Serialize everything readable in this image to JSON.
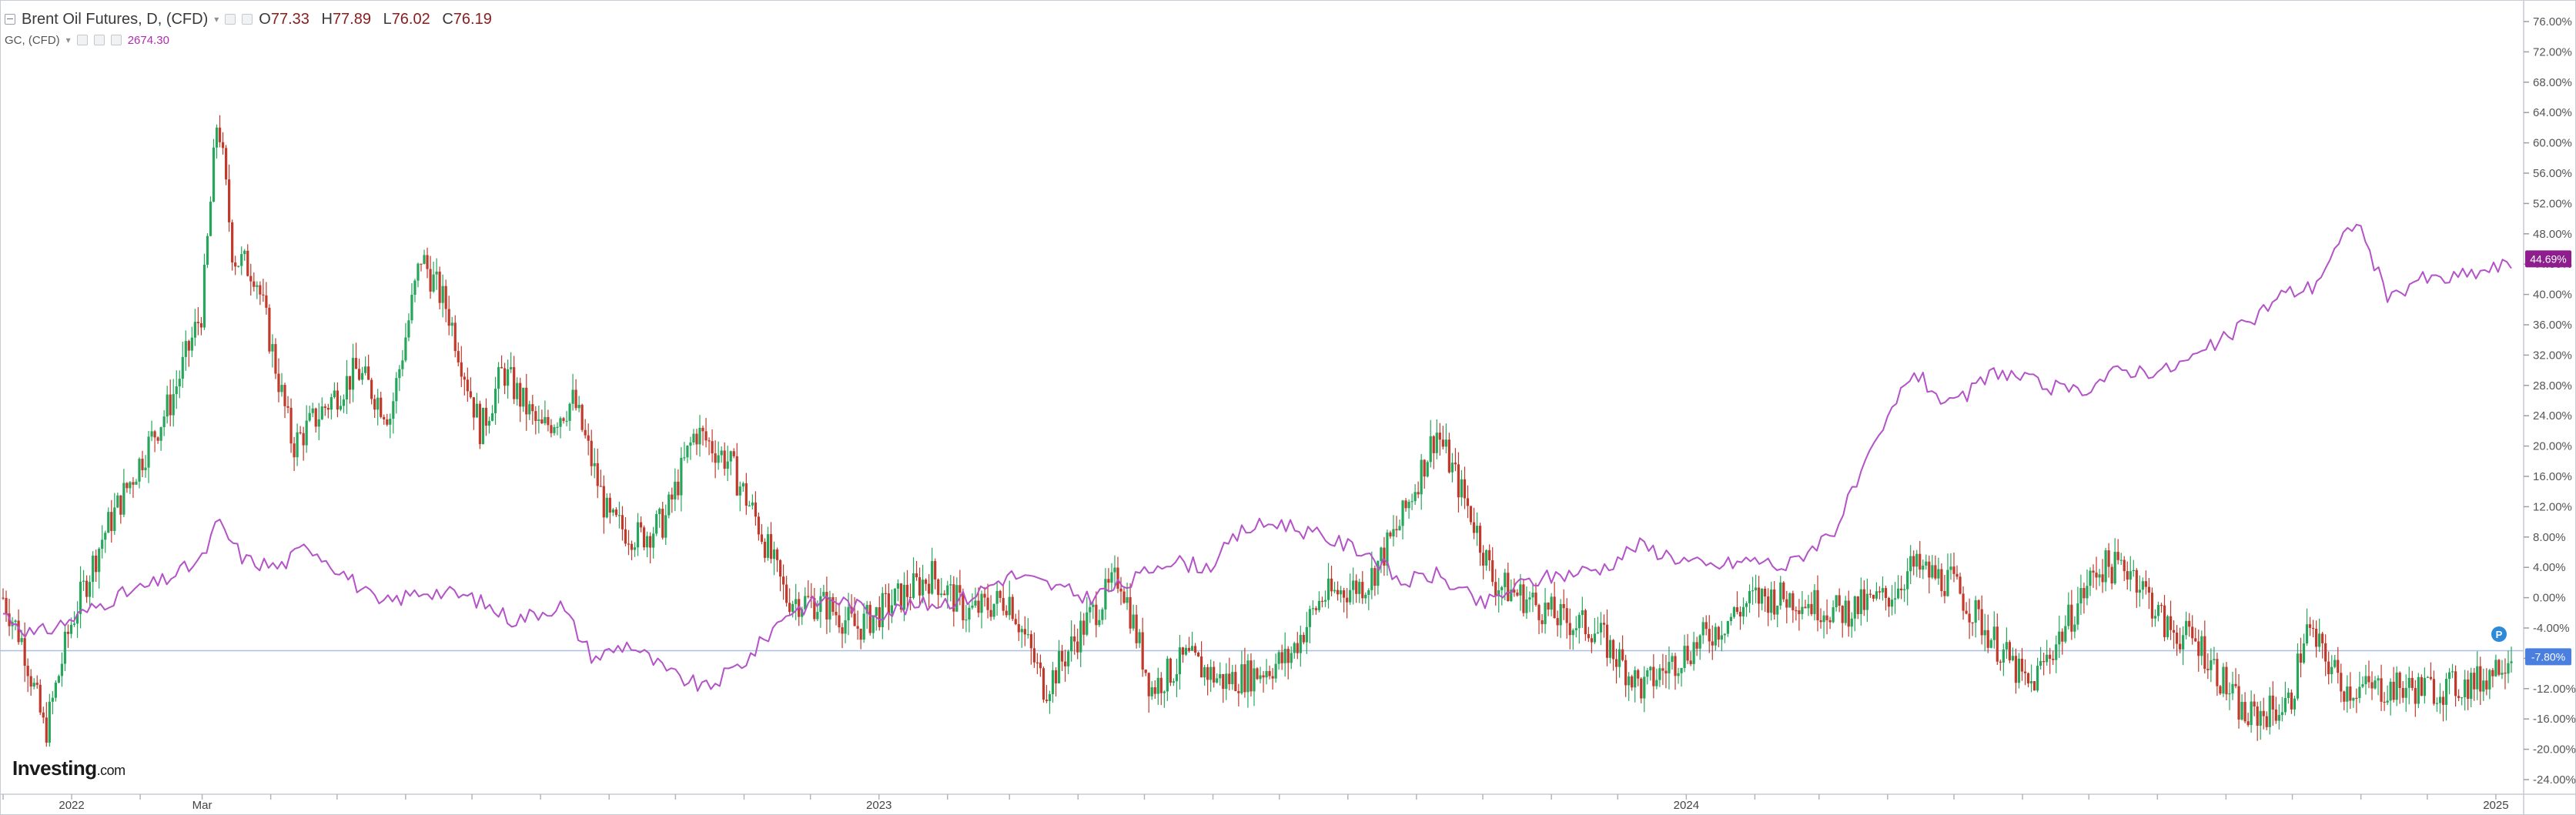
{
  "legend": {
    "symbol": "Brent Oil Futures, D, (CFD)",
    "open_label": "O",
    "open": "77.33",
    "high_label": "H",
    "high": "77.89",
    "low_label": "L",
    "low": "76.02",
    "close_label": "C",
    "close": "76.19",
    "compare_symbol": "GC, (CFD)",
    "compare_value": "2674.30"
  },
  "logo": {
    "brand": "Investing",
    "suffix": ".com"
  },
  "colors": {
    "up": "#26a65b",
    "down": "#c0392b",
    "compare_line": "#b452c7",
    "compare_badge": "#8e1e8e",
    "main_badge": "#4a7fe0",
    "price_line": "#a9bfe6"
  },
  "chart_data": {
    "type": "line",
    "title": "Brent Oil Futures, D, (CFD)",
    "y_axis": {
      "unit": "% change",
      "ylim": [
        -25,
        77
      ],
      "ticks": [
        "76.00%",
        "72.00%",
        "68.00%",
        "64.00%",
        "60.00%",
        "56.00%",
        "52.00%",
        "48.00%",
        "44.00%",
        "40.00%",
        "36.00%",
        "32.00%",
        "28.00%",
        "24.00%",
        "20.00%",
        "16.00%",
        "12.00%",
        "8.00%",
        "4.00%",
        "0.00%",
        "-4.00%",
        "-8.00%",
        "-12.00%",
        "-16.00%",
        "-20.00%",
        "-24.00%"
      ],
      "tick_values": [
        76,
        72,
        68,
        64,
        60,
        56,
        52,
        48,
        44,
        40,
        36,
        32,
        28,
        24,
        20,
        16,
        12,
        8,
        4,
        0,
        -4,
        -8,
        -12,
        -16,
        -20,
        -24
      ]
    },
    "x_axis": {
      "labels": [
        "2022",
        "Mar",
        "2023",
        "2024",
        "2025"
      ],
      "label_dates": [
        "2022-01-01",
        "2022-03-01",
        "2023-01-01",
        "2024-01-01",
        "2025-01-01"
      ],
      "range": [
        "2021-12-01",
        "2025-01-08"
      ]
    },
    "series": [
      {
        "name": "Brent Oil Futures, D, (CFD)",
        "style": "candlestick",
        "dates": [
          "2021-12-01",
          "2021-12-10",
          "2021-12-20",
          "2021-12-31",
          "2022-01-15",
          "2022-02-01",
          "2022-02-15",
          "2022-03-01",
          "2022-03-08",
          "2022-03-15",
          "2022-03-25",
          "2022-04-11",
          "2022-04-25",
          "2022-05-10",
          "2022-05-25",
          "2022-06-08",
          "2022-06-20",
          "2022-07-05",
          "2022-07-15",
          "2022-08-01",
          "2022-08-16",
          "2022-09-01",
          "2022-09-15",
          "2022-09-26",
          "2022-10-10",
          "2022-10-25",
          "2022-11-07",
          "2022-11-20",
          "2022-12-08",
          "2022-12-22",
          "2023-01-10",
          "2023-01-25",
          "2023-02-10",
          "2023-03-01",
          "2023-03-17",
          "2023-04-03",
          "2023-04-20",
          "2023-05-04",
          "2023-05-20",
          "2023-06-05",
          "2023-06-20",
          "2023-07-05",
          "2023-07-20",
          "2023-08-10",
          "2023-08-25",
          "2023-09-10",
          "2023-09-27",
          "2023-10-06",
          "2023-10-20",
          "2023-11-06",
          "2023-11-20",
          "2023-12-12",
          "2023-12-28",
          "2024-01-15",
          "2024-02-01",
          "2024-02-20",
          "2024-03-10",
          "2024-04-01",
          "2024-04-12",
          "2024-04-30",
          "2024-05-15",
          "2024-06-04",
          "2024-06-20",
          "2024-07-05",
          "2024-07-20",
          "2024-08-05",
          "2024-08-20",
          "2024-09-10",
          "2024-09-30",
          "2024-10-07",
          "2024-10-25",
          "2024-11-10",
          "2024-11-25",
          "2024-12-10",
          "2024-12-25",
          "2025-01-08"
        ],
        "values": [
          0,
          -6,
          -18,
          -4,
          8,
          18,
          26,
          38,
          64,
          45,
          43,
          20,
          25,
          30,
          24,
          45,
          38,
          22,
          30,
          22,
          26,
          10,
          8,
          10,
          22,
          18,
          10,
          0,
          -1,
          -4,
          0,
          3,
          -2,
          0,
          -12,
          -4,
          3,
          -12,
          -8,
          -11,
          -10,
          -8,
          0,
          2,
          10,
          22,
          10,
          2,
          0,
          -3,
          -4,
          -12,
          -8,
          -4,
          0,
          0,
          -2,
          0,
          4,
          2,
          -4,
          -12,
          -4,
          4,
          4,
          -4,
          -6,
          -16,
          -14,
          -4,
          -12,
          -12,
          -12,
          -12,
          -11,
          -7
        ]
      },
      {
        "name": "GC, (CFD)",
        "style": "line",
        "dates": [
          "2021-12-01",
          "2021-12-15",
          "2021-12-31",
          "2022-01-20",
          "2022-02-10",
          "2022-03-01",
          "2022-03-08",
          "2022-03-20",
          "2022-04-05",
          "2022-04-18",
          "2022-05-05",
          "2022-05-20",
          "2022-06-10",
          "2022-07-01",
          "2022-07-20",
          "2022-08-10",
          "2022-08-25",
          "2022-09-10",
          "2022-09-28",
          "2022-10-15",
          "2022-11-03",
          "2022-11-20",
          "2022-12-10",
          "2022-12-31",
          "2023-01-20",
          "2023-02-10",
          "2023-03-01",
          "2023-03-15",
          "2023-04-05",
          "2023-04-25",
          "2023-05-10",
          "2023-05-30",
          "2023-06-15",
          "2023-07-01",
          "2023-07-20",
          "2023-08-10",
          "2023-08-25",
          "2023-09-10",
          "2023-10-01",
          "2023-10-20",
          "2023-11-05",
          "2023-11-25",
          "2023-12-10",
          "2024-01-10",
          "2024-02-01",
          "2024-02-15",
          "2024-03-08",
          "2024-03-25",
          "2024-04-12",
          "2024-04-30",
          "2024-05-20",
          "2024-06-10",
          "2024-06-25",
          "2024-07-15",
          "2024-08-05",
          "2024-08-20",
          "2024-09-10",
          "2024-09-26",
          "2024-10-10",
          "2024-10-30",
          "2024-11-14",
          "2024-11-25",
          "2024-12-10",
          "2024-12-25",
          "2025-01-08"
        ],
        "values": [
          -2,
          -5,
          -3,
          0,
          2,
          5,
          10,
          5,
          4,
          7,
          3,
          -1,
          1,
          0,
          -3,
          -1,
          -8,
          -6,
          -10,
          -12,
          -8,
          -2,
          0,
          -2,
          -1,
          0,
          3,
          2,
          0,
          2,
          5,
          4,
          9,
          10,
          8,
          6,
          2,
          3,
          -1,
          2,
          3,
          4,
          7,
          4,
          5,
          4,
          9,
          19,
          30,
          25,
          30,
          28,
          27,
          30,
          30,
          32,
          36,
          40,
          41,
          50,
          39,
          42,
          42,
          43,
          44
        ]
      }
    ],
    "last_values": {
      "main": "-7.80%",
      "compare": "44.69%"
    },
    "markers": [
      {
        "label": "P"
      }
    ],
    "grid": false,
    "legend_position": "top-left"
  }
}
